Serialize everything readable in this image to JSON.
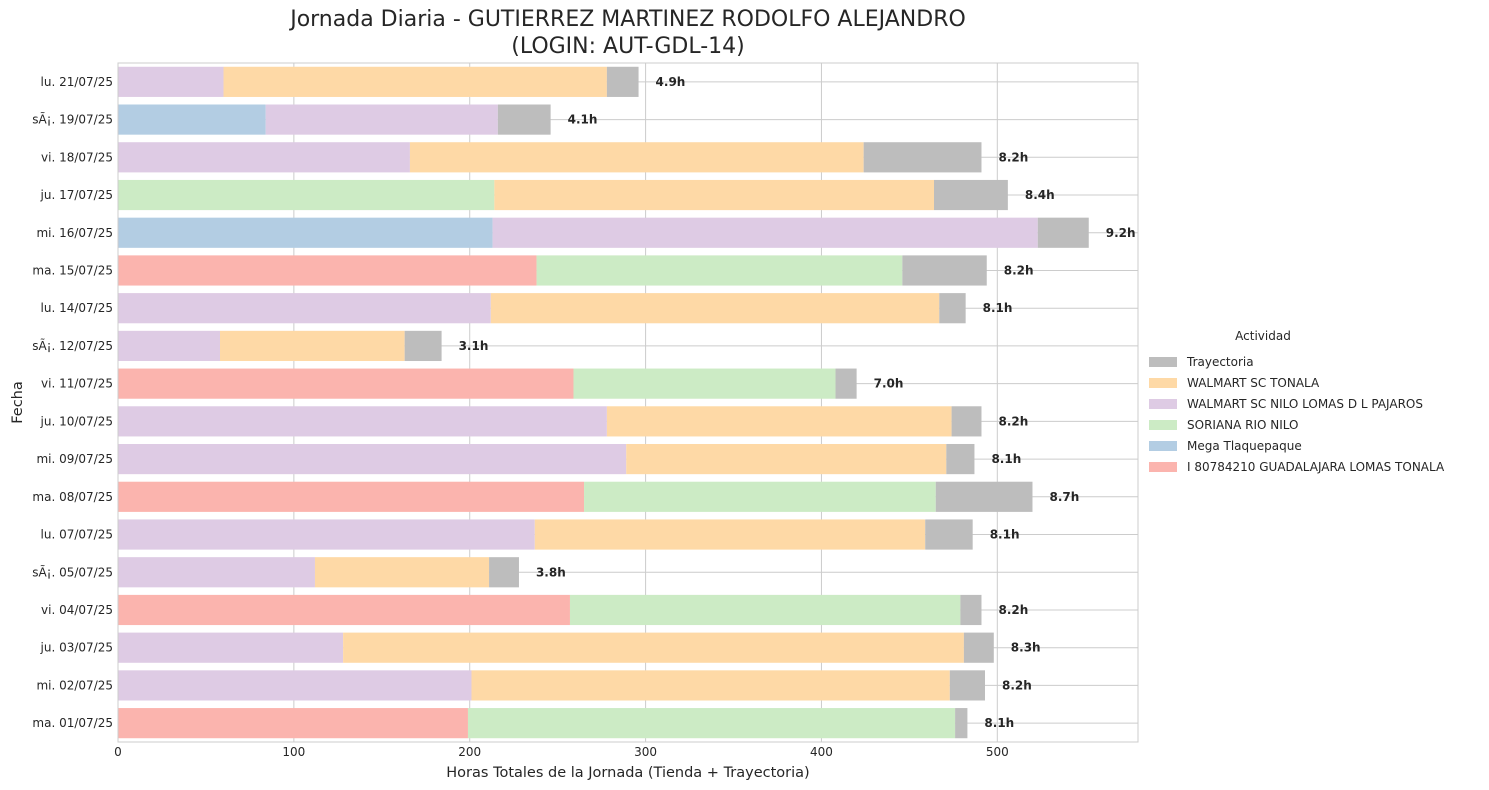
{
  "chart_data": {
    "type": "bar",
    "orientation": "horizontal",
    "stacked": true,
    "title_lines": [
      "Jornada Diaria - GUTIERREZ MARTINEZ RODOLFO ALEJANDRO",
      "(LOGIN: AUT-GDL-14)"
    ],
    "xlabel": "Horas Totales de la Jornada (Tienda + Trayectoria)",
    "ylabel": "Fecha",
    "xlim": [
      0,
      580
    ],
    "xticks": [
      0,
      100,
      200,
      300,
      400,
      500
    ],
    "grid": true,
    "legend_position": "right",
    "legend_title": "Actividad",
    "categories": [
      "lu. 21/07/25",
      "sÃ¡. 19/07/25",
      "vi. 18/07/25",
      "ju. 17/07/25",
      "mi. 16/07/25",
      "ma. 15/07/25",
      "lu. 14/07/25",
      "sÃ¡. 12/07/25",
      "vi. 11/07/25",
      "ju. 10/07/25",
      "mi. 09/07/25",
      "ma. 08/07/25",
      "lu. 07/07/25",
      "sÃ¡. 05/07/25",
      "vi. 04/07/25",
      "ju. 03/07/25",
      "mi. 02/07/25",
      "ma. 01/07/25"
    ],
    "series": [
      {
        "name": "I 80784210 GUADALAJARA LOMAS TONALA",
        "color": "#fbb4ae",
        "values": [
          0,
          0,
          0,
          0,
          0,
          238,
          0,
          0,
          259,
          0,
          0,
          265,
          0,
          0,
          257,
          0,
          0,
          199
        ]
      },
      {
        "name": "Mega Tlaquepaque",
        "color": "#b3cde3",
        "values": [
          0,
          84,
          0,
          0,
          213,
          0,
          0,
          0,
          0,
          0,
          0,
          0,
          0,
          0,
          0,
          0,
          0,
          0
        ]
      },
      {
        "name": "SORIANA RIO NILO",
        "color": "#ccebc5",
        "values": [
          0,
          0,
          0,
          214,
          0,
          208,
          0,
          0,
          149,
          0,
          0,
          200,
          0,
          0,
          222,
          0,
          0,
          277
        ]
      },
      {
        "name": "WALMART SC NILO LOMAS D L PAJAROS",
        "color": "#decbe4",
        "values": [
          60,
          132,
          166,
          0,
          310,
          0,
          212,
          58,
          0,
          278,
          289,
          0,
          237,
          112,
          0,
          128,
          201,
          0
        ]
      },
      {
        "name": "WALMART SC TONALA",
        "color": "#fed9a6",
        "values": [
          218,
          0,
          258,
          250,
          0,
          0,
          255,
          105,
          0,
          196,
          182,
          0,
          222,
          99,
          0,
          353,
          272,
          0
        ]
      },
      {
        "name": "Trayectoria",
        "color": "#bdbdbd",
        "values": [
          18,
          30,
          67,
          42,
          29,
          48,
          15,
          21,
          12,
          17,
          16,
          55,
          27,
          17,
          12,
          17,
          20,
          7
        ]
      }
    ],
    "legend_order": [
      "Trayectoria",
      "WALMART SC TONALA",
      "WALMART SC NILO LOMAS D L PAJAROS",
      "SORIANA RIO NILO",
      "Mega Tlaquepaque",
      "I 80784210 GUADALAJARA LOMAS TONALA"
    ],
    "total_labels": [
      "4.9h",
      "4.1h",
      "8.2h",
      "8.4h",
      "9.2h",
      "8.2h",
      "8.1h",
      "3.1h",
      "7.0h",
      "8.2h",
      "8.1h",
      "8.7h",
      "8.1h",
      "3.8h",
      "8.2h",
      "8.3h",
      "8.2h",
      "8.1h"
    ]
  }
}
